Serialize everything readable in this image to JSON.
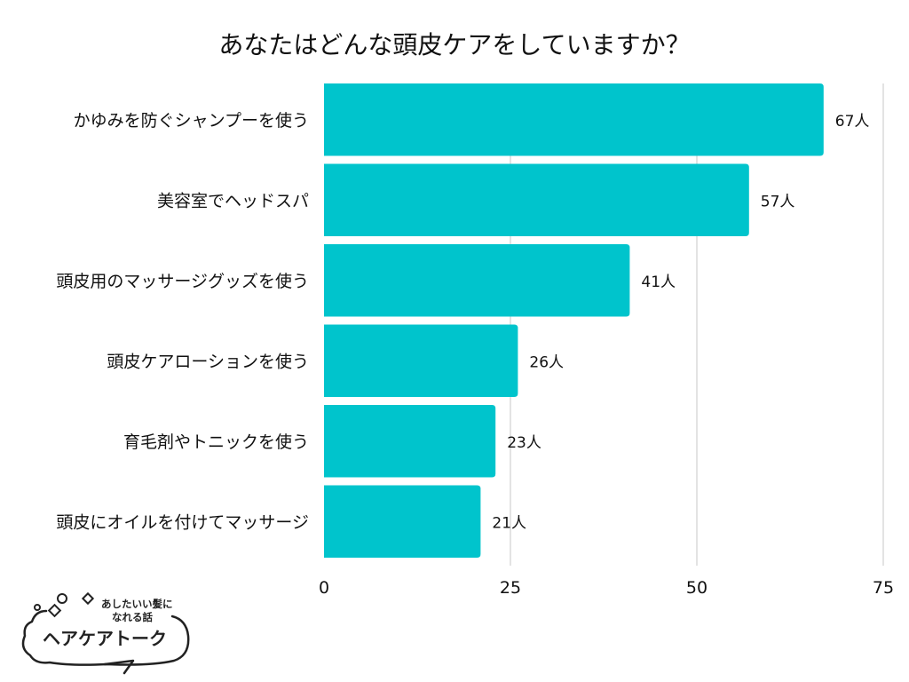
{
  "chart_data": {
    "type": "bar",
    "orientation": "horizontal",
    "title": "あなたはどんな頭皮ケアをしていますか？",
    "categories": [
      "かゆみを防ぐシャンプーを使う",
      "美容室でヘッドスパ",
      "頭皮用のマッサージグッズを使う",
      "頭皮ケアローションを使う",
      "育毛剤やトニックを使う",
      "頭皮にオイルを付けてマッサージ"
    ],
    "values": [
      67,
      57,
      41,
      26,
      23,
      21
    ],
    "value_labels": [
      "67人",
      "57人",
      "41人",
      "26人",
      "23人",
      "21人"
    ],
    "unit": "人",
    "xlim": [
      0,
      75
    ],
    "xticks": [
      0,
      25,
      50,
      75
    ],
    "xtick_labels": [
      "0",
      "25",
      "50",
      "75"
    ],
    "grid": true,
    "bar_color": "#00c4cc"
  },
  "logo": {
    "tagline_line1": "あしたいい髪に",
    "tagline_line2": "なれる話",
    "name": "ヘアケアトーク"
  }
}
